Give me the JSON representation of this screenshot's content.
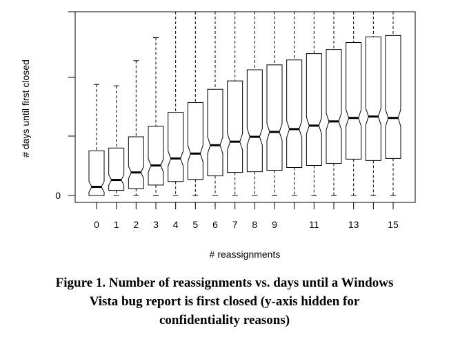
{
  "chart_data": {
    "type": "boxplot",
    "xlabel": "# reassignments",
    "ylabel": "# days until first closed",
    "y_axis_labels": [
      "0"
    ],
    "x_tick_labels": [
      "0",
      "1",
      "2",
      "3",
      "4",
      "5",
      "6",
      "7",
      "8",
      "9",
      "11",
      "13",
      "15"
    ],
    "notched": true,
    "y_values_hidden": true,
    "categories": [
      "0",
      "1",
      "2",
      "3",
      "4",
      "5",
      "6",
      "7",
      "8",
      "9",
      "10",
      "11",
      "12",
      "13",
      "14",
      "15"
    ],
    "boxes": [
      {
        "x": 0,
        "whisker_low": 0,
        "q1": 0.0,
        "median": 12.4,
        "q3": 64,
        "whisker_high": 159
      },
      {
        "x": 1,
        "whisker_low": 0,
        "q1": 7.3,
        "median": 22.2,
        "q3": 68,
        "whisker_high": 157
      },
      {
        "x": 2,
        "whisker_low": 0,
        "q1": 10,
        "median": 33,
        "q3": 84,
        "whisker_high": 193
      },
      {
        "x": 3,
        "whisker_low": 0,
        "q1": 15,
        "median": 43,
        "q3": 99,
        "whisker_high": 226
      },
      {
        "x": 4,
        "whisker_low": 0,
        "q1": 20,
        "median": 53,
        "q3": 119,
        "whisker_high": 263
      },
      {
        "x": 5,
        "whisker_low": 0,
        "q1": 23,
        "median": 60,
        "q3": 133,
        "whisker_high": 263
      },
      {
        "x": 6,
        "whisker_low": 0,
        "q1": 28,
        "median": 72,
        "q3": 152,
        "whisker_high": 263
      },
      {
        "x": 7,
        "whisker_low": 0,
        "q1": 33,
        "median": 77,
        "q3": 164,
        "whisker_high": 263
      },
      {
        "x": 8,
        "whisker_low": 0,
        "q1": 34,
        "median": 84,
        "q3": 180,
        "whisker_high": 263
      },
      {
        "x": 9,
        "whisker_low": 0,
        "q1": 36,
        "median": 91,
        "q3": 187,
        "whisker_high": 263
      },
      {
        "x": 10,
        "whisker_low": 0,
        "q1": 40,
        "median": 95,
        "q3": 194,
        "whisker_high": 263
      },
      {
        "x": 11,
        "whisker_low": 0,
        "q1": 43,
        "median": 100,
        "q3": 203,
        "whisker_high": 263
      },
      {
        "x": 12,
        "whisker_low": 0,
        "q1": 46,
        "median": 106,
        "q3": 209,
        "whisker_high": 263
      },
      {
        "x": 13,
        "whisker_low": 0,
        "q1": 52,
        "median": 111,
        "q3": 219,
        "whisker_high": 263
      },
      {
        "x": 14,
        "whisker_low": 0,
        "q1": 50,
        "median": 113,
        "q3": 227,
        "whisker_high": 263
      },
      {
        "x": 15,
        "whisker_low": 0,
        "q1": 53,
        "median": 111,
        "q3": 229,
        "whisker_high": 263
      }
    ],
    "ylim": [
      -10,
      263
    ],
    "xlim": [
      -0.5,
      15.5
    ]
  },
  "caption": {
    "lines": [
      "Figure 1. Number of reassignments vs. days until a Windows",
      "Vista bug report is first closed (y-axis hidden for",
      "confidentiality reasons)"
    ]
  }
}
